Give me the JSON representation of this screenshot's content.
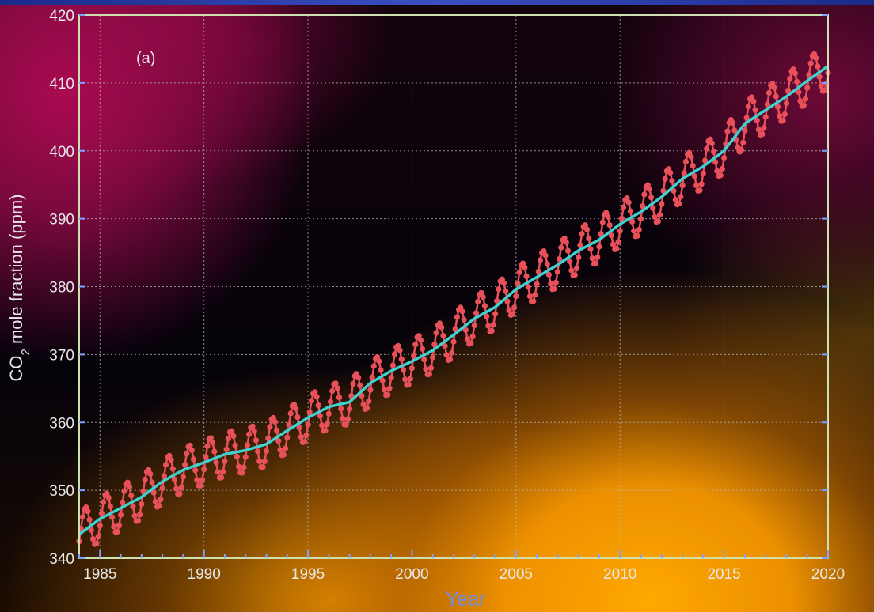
{
  "chart_data": {
    "type": "line",
    "panel_label": "(a)",
    "xlabel": "Year",
    "ylabel": "CO2 mole fraction (ppm)",
    "ylabel_parts": {
      "pre": "CO",
      "sub": "2",
      "post": " mole fraction (ppm)"
    },
    "xlim": [
      1984,
      2020
    ],
    "ylim": [
      340,
      420
    ],
    "x_ticks": [
      "1985",
      "1990",
      "1995",
      "2000",
      "2005",
      "2010",
      "2015",
      "2020"
    ],
    "y_ticks": [
      "340",
      "350",
      "360",
      "370",
      "380",
      "390",
      "400",
      "410",
      "420"
    ],
    "grid": true,
    "colors": {
      "monthly": "#e8505a",
      "trend": "#3fd0cf",
      "axes": "#7ea2ff",
      "frame": "#cfe0b0"
    },
    "series": [
      {
        "role": "monthly",
        "x": [
          1984,
          1985,
          1986,
          1987,
          1988,
          1989,
          1990,
          1991,
          1992,
          1993,
          1994,
          1995,
          1996,
          1997,
          1998,
          1999,
          2000,
          2001,
          2002,
          2003,
          2004,
          2005,
          2006,
          2007,
          2008,
          2009,
          2010,
          2011,
          2012,
          2013,
          2014,
          2015,
          2016,
          2017,
          2018,
          2019,
          2020
        ],
        "y": [
          343.5,
          345.8,
          347.4,
          349.0,
          351.3,
          353.0,
          354.1,
          355.3,
          355.9,
          356.8,
          358.8,
          360.7,
          362.3,
          363.0,
          365.8,
          367.6,
          369.0,
          370.6,
          372.9,
          375.3,
          377.0,
          379.6,
          381.4,
          383.2,
          385.3,
          386.9,
          389.2,
          391.0,
          393.2,
          395.9,
          397.7,
          400.0,
          404.0,
          406.0,
          408.0,
          410.3,
          412.5
        ]
      },
      {
        "role": "trend",
        "x": [
          1984,
          1985,
          1986,
          1987,
          1988,
          1989,
          1990,
          1991,
          1992,
          1993,
          1994,
          1995,
          1996,
          1997,
          1998,
          1999,
          2000,
          2001,
          2002,
          2003,
          2004,
          2005,
          2006,
          2007,
          2008,
          2009,
          2010,
          2011,
          2012,
          2013,
          2014,
          2015,
          2016,
          2017,
          2018,
          2019,
          2020
        ],
        "y": [
          343.5,
          345.8,
          347.4,
          349.0,
          351.3,
          353.0,
          354.1,
          355.3,
          355.9,
          356.8,
          358.8,
          360.7,
          362.3,
          363.0,
          365.8,
          367.6,
          369.0,
          370.6,
          372.9,
          375.3,
          377.0,
          379.6,
          381.4,
          383.2,
          385.3,
          386.9,
          389.2,
          391.0,
          393.2,
          395.9,
          397.7,
          400.0,
          404.0,
          406.0,
          408.0,
          410.3,
          412.5
        ]
      }
    ]
  }
}
